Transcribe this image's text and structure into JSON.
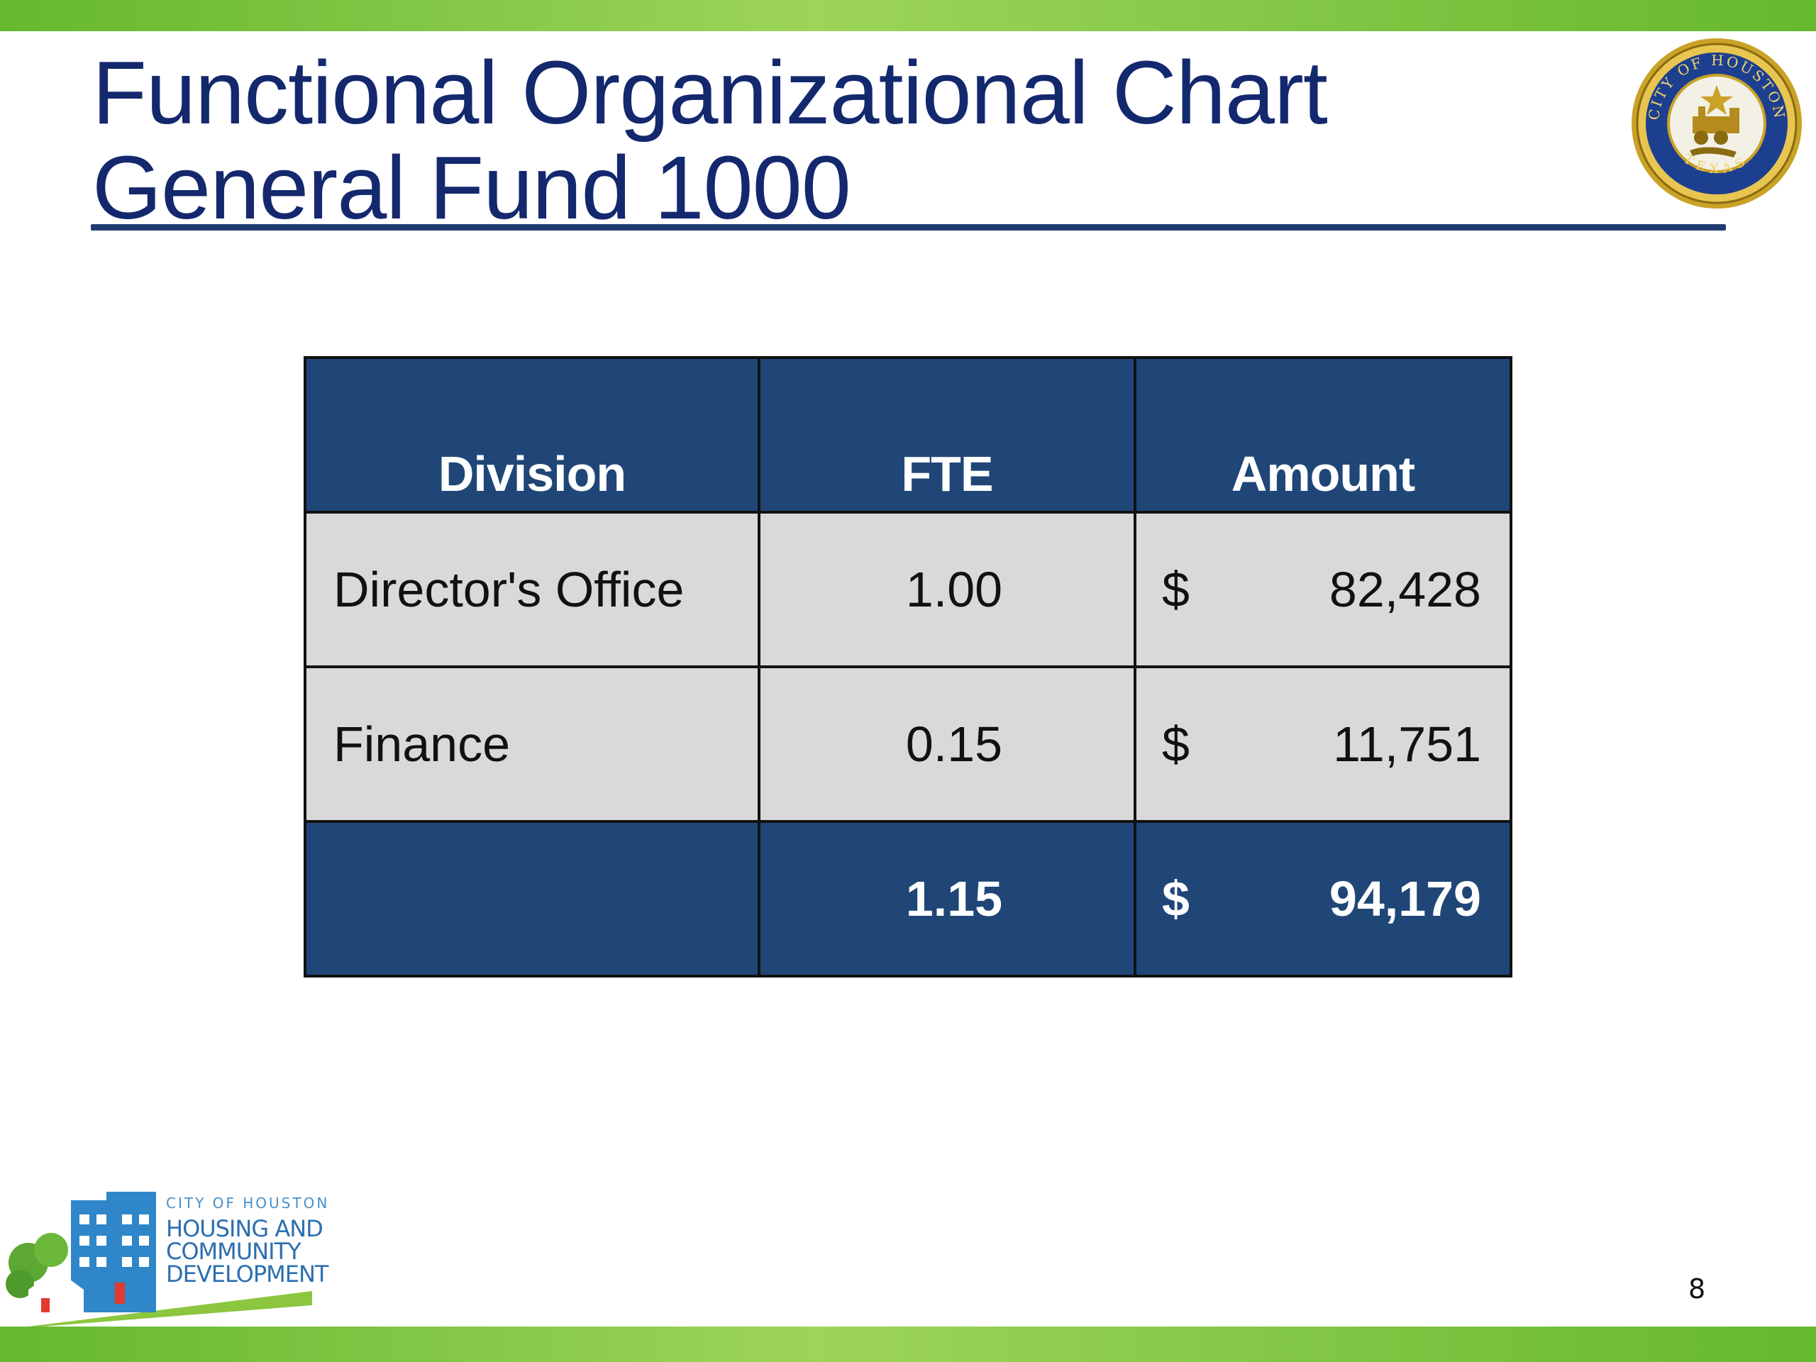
{
  "slide": {
    "title_line1": "Functional Organizational Chart",
    "title_line2": "General Fund 1000",
    "page_number": "8"
  },
  "table": {
    "headers": [
      "Division",
      "FTE",
      "Amount"
    ],
    "rows": [
      {
        "division": "Director's Office",
        "fte": "1.00",
        "currency": "$",
        "amount": "82,428"
      },
      {
        "division": "Finance",
        "fte": "0.15",
        "currency": "$",
        "amount": "11,751"
      }
    ],
    "total": {
      "division": "",
      "fte": "1.15",
      "currency": "$",
      "amount": "94,179"
    }
  },
  "logo": {
    "line1": "CITY OF HOUSTON",
    "line2": "HOUSING AND",
    "line3": "COMMUNITY",
    "line4": "DEVELOPMENT"
  },
  "seal": {
    "text_top": "CITY OF HOUSTON",
    "text_bottom": "TEXAS"
  },
  "colors": {
    "accent_green": "#66b82f",
    "table_header_blue": "#1f4677",
    "title_navy": "#14286e",
    "row_gray": "#d9d9d9"
  },
  "icons": [
    "city-seal-icon",
    "hcd-logo-icon"
  ]
}
